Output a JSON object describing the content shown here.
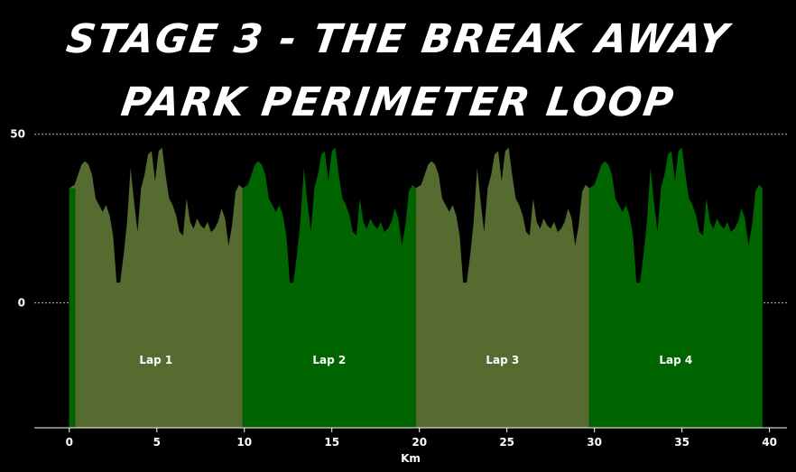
{
  "chart_data": {
    "type": "area",
    "title": [
      "STAGE 3 - THE BREAK AWAY",
      "PARK PERIMETER LOOP"
    ],
    "xlabel": "Km",
    "ylabel": "",
    "xlim": [
      -2,
      41
    ],
    "ylim": [
      -37,
      55
    ],
    "xticks": [
      0,
      5,
      10,
      15,
      20,
      25,
      30,
      35,
      40
    ],
    "yticks": [
      0,
      50
    ],
    "grid": "horizontal dotted",
    "lap_distance_km": 9.9,
    "laps": [
      {
        "label": "Lap 1",
        "start_km": 0.0,
        "end_km": 9.9,
        "color": "#556b2f"
      },
      {
        "label": "Lap 2",
        "start_km": 9.9,
        "end_km": 19.8,
        "color": "#006400"
      },
      {
        "label": "Lap 3",
        "start_km": 19.8,
        "end_km": 29.7,
        "color": "#556b2f"
      },
      {
        "label": "Lap 4",
        "start_km": 29.7,
        "end_km": 39.6,
        "color": "#006400"
      }
    ],
    "lap_profile_km": [
      0.0,
      0.3,
      0.5,
      0.7,
      0.9,
      1.1,
      1.3,
      1.5,
      1.7,
      1.9,
      2.1,
      2.3,
      2.5,
      2.7,
      2.9,
      3.1,
      3.3,
      3.5,
      3.7,
      3.9,
      4.1,
      4.3,
      4.5,
      4.7,
      4.9,
      5.1,
      5.3,
      5.5,
      5.7,
      5.9,
      6.1,
      6.3,
      6.5,
      6.7,
      6.9,
      7.1,
      7.3,
      7.5,
      7.7,
      7.9,
      8.1,
      8.3,
      8.5,
      8.7,
      8.9,
      9.1,
      9.3,
      9.5,
      9.7,
      9.9
    ],
    "lap_profile_elev": [
      34,
      35,
      38,
      41,
      42,
      41,
      38,
      31,
      29,
      27,
      29,
      26,
      20,
      6,
      6,
      14,
      24,
      40,
      30,
      21,
      34,
      38,
      44,
      45,
      36,
      45,
      46,
      38,
      31,
      29,
      26,
      21,
      20,
      31,
      24,
      22,
      25,
      23,
      22,
      24,
      21,
      22,
      24,
      28,
      25,
      17,
      23,
      33,
      35,
      34
    ],
    "color": "#556b2f"
  }
}
